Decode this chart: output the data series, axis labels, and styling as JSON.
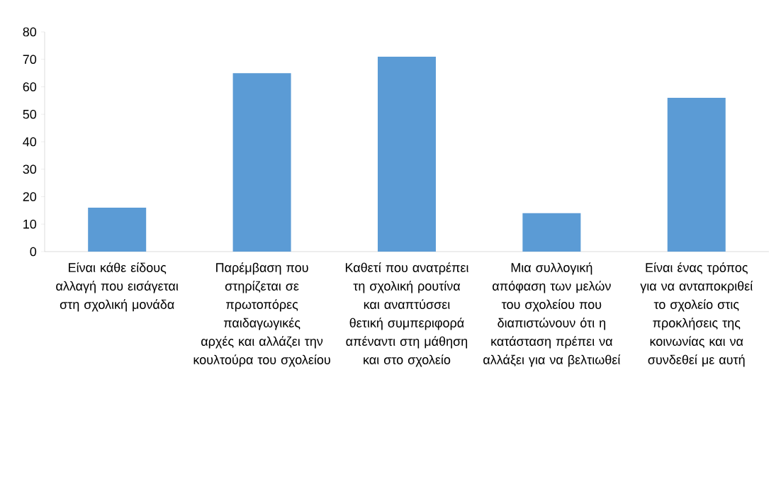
{
  "chart_data": {
    "type": "bar",
    "categories": [
      "Είναι κάθε είδους αλλαγή που εισάγεται στη σχολική μονάδα",
      "Παρέμβαση που στηρίζεται σε πρωτοπόρες παιδαγωγικές αρχές και αλλάζει την κουλτούρα του σχολείου",
      "Καθετί που ανατρέπει τη σχολική ρουτίνα και αναπτύσσει θετική συμπεριφορά απέναντι στη μάθηση και στο σχολείο",
      "Μια συλλογική απόφαση των μελών του σχολείου που διαπιστώνουν ότι η κατάσταση πρέπει να αλλάξει για να βελτιωθεί",
      "Είναι ένας τρόπος για να ανταποκριθεί το σχολείο στις προκλήσεις της κοινωνίας και να συνδεθεί με αυτή"
    ],
    "values": [
      16,
      65,
      71,
      14,
      56
    ],
    "color": "#5b9bd5",
    "ylim": [
      0,
      80
    ],
    "yticks": [
      0,
      10,
      20,
      30,
      40,
      50,
      60,
      70,
      80
    ]
  }
}
